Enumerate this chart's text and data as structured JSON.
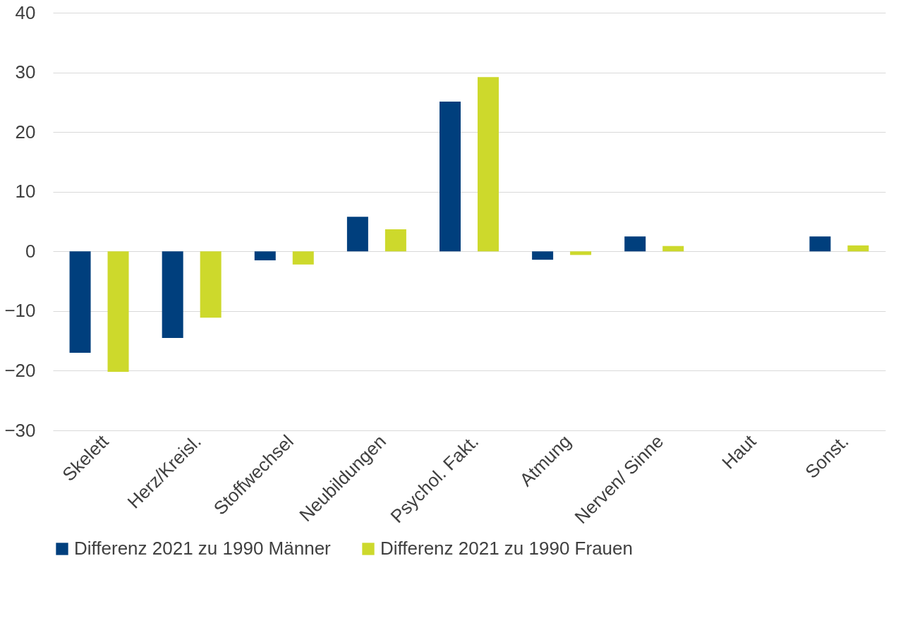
{
  "chart_data": {
    "type": "bar",
    "categories": [
      "Skelett",
      "Herz/Kreisl.",
      "Stoffwechsel",
      "Neubildungen",
      "Psychol. Fakt.",
      "Atmung",
      "Nerven/ Sinne",
      "Haut",
      "Sonst."
    ],
    "series": [
      {
        "name": "Differenz 2021 zu 1990 Männer",
        "color": "#003f7d",
        "values": [
          -17.0,
          -14.5,
          -1.5,
          5.8,
          25.1,
          -1.4,
          2.5,
          0,
          2.5
        ]
      },
      {
        "name": "Differenz 2021 zu 1990 Frauen",
        "color": "#cdd92c",
        "values": [
          -20.2,
          -11.1,
          -2.2,
          3.7,
          29.2,
          -0.6,
          0.9,
          0,
          1.0
        ]
      }
    ],
    "ylim": [
      -30,
      40
    ],
    "yticks": [
      -30,
      -20,
      -10,
      0,
      10,
      20,
      30,
      40
    ],
    "grid": "y",
    "legend": "bottom"
  }
}
